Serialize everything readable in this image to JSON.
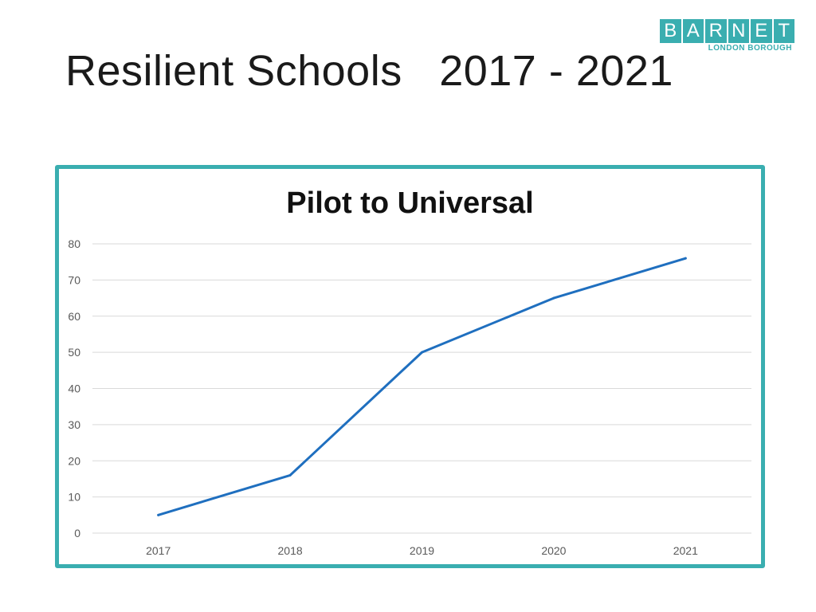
{
  "slide": {
    "title": "Resilient Schools   2017 - 2021"
  },
  "logo": {
    "letters": [
      "B",
      "A",
      "R",
      "N",
      "E",
      "T"
    ],
    "subtitle": "LONDON BOROUGH",
    "color": "#3aaeb0"
  },
  "colors": {
    "frame": "#3aaeb0",
    "line": "#1f6fbf",
    "grid": "#d9d9d9",
    "tick_text": "#595959"
  },
  "chart_data": {
    "type": "line",
    "title": "Pilot to Universal",
    "xlabel": "",
    "ylabel": "",
    "categories": [
      "2017",
      "2018",
      "2019",
      "2020",
      "2021"
    ],
    "series": [
      {
        "values": [
          5,
          16,
          50,
          65,
          76
        ]
      }
    ],
    "ylim": [
      0,
      80
    ],
    "yticks": [
      "0",
      "10",
      "20",
      "30",
      "40",
      "50",
      "60",
      "70",
      "80"
    ],
    "grid": true,
    "legend": "none"
  }
}
